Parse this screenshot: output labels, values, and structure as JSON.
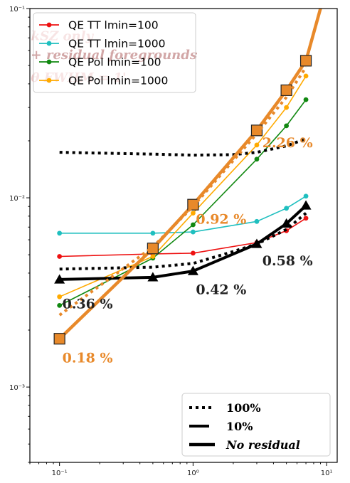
{
  "chart_data": {
    "type": "line",
    "xscale": "log",
    "yscale": "log",
    "xlim": [
      0.06,
      12
    ],
    "ylim": [
      0.0004,
      0.1
    ],
    "x_ticks": [
      {
        "value": 0.1,
        "label": "10⁻¹"
      },
      {
        "value": 1,
        "label": "10⁰"
      },
      {
        "value": 10,
        "label": "10¹"
      }
    ],
    "y_ticks": [
      {
        "value": 0.001,
        "label": "10⁻³"
      },
      {
        "value": 0.01,
        "label": "10⁻²"
      },
      {
        "value": 0.1,
        "label": "10⁻¹"
      }
    ],
    "series": [
      {
        "name": "QE TT lmin=100",
        "color": "#ee1111",
        "style": "solid",
        "marker": "dot",
        "x": [
          0.1,
          0.5,
          1,
          3,
          5,
          7
        ],
        "y": [
          0.0049,
          0.00505,
          0.0051,
          0.0058,
          0.0067,
          0.0078
        ]
      },
      {
        "name": "QE TT lmin=1000",
        "color": "#1fbfbf",
        "style": "solid",
        "marker": "dot",
        "x": [
          0.1,
          0.5,
          1,
          3,
          5,
          7
        ],
        "y": [
          0.0065,
          0.0065,
          0.0066,
          0.0075,
          0.0088,
          0.0102
        ]
      },
      {
        "name": "QE Pol lmin=100",
        "color": "#118811",
        "style": "solid",
        "marker": "dot",
        "x": [
          0.1,
          0.5,
          1,
          3,
          5,
          7
        ],
        "y": [
          0.0027,
          0.0048,
          0.0072,
          0.016,
          0.024,
          0.033
        ]
      },
      {
        "name": "QE Pol lmin=1000",
        "color": "#ffaa00",
        "style": "solid",
        "marker": "dot",
        "x": [
          0.1,
          0.5,
          1,
          3,
          5,
          7
        ],
        "y": [
          0.003,
          0.0049,
          0.0083,
          0.019,
          0.03,
          0.044
        ]
      },
      {
        "name": "",
        "color": "#000000",
        "style": "dotted",
        "marker": "none",
        "x": [
          0.1,
          0.5,
          1,
          2,
          3,
          5,
          7
        ],
        "y": [
          0.0042,
          0.0043,
          0.0045,
          0.0052,
          0.0057,
          0.0068,
          0.0083
        ]
      },
      {
        "name": "",
        "color": "#000000",
        "style": "dotted",
        "marker": "none",
        "x": [
          0.1,
          0.5,
          1,
          2,
          3,
          5,
          7
        ],
        "y": [
          0.0174,
          0.017,
          0.0168,
          0.0169,
          0.0174,
          0.0188,
          0.0205
        ]
      },
      {
        "name": "",
        "color": "#000000",
        "style": "thick",
        "marker": "triangle",
        "x": [
          0.1,
          0.5,
          1,
          3,
          5,
          7
        ],
        "y": [
          0.0037,
          0.0038,
          0.0041,
          0.0057,
          0.0073,
          0.0091
        ]
      },
      {
        "name": "",
        "color": "#e8892a",
        "style": "thick",
        "marker": "square",
        "x": [
          0.1,
          0.5,
          1,
          3,
          5,
          7,
          9
        ],
        "y": [
          0.0018,
          0.0054,
          0.0092,
          0.0227,
          0.037,
          0.053,
          0.1
        ]
      },
      {
        "name": "",
        "color": "#e8892a",
        "style": "dotted",
        "marker": "none",
        "x": [
          0.1,
          0.5,
          1,
          3,
          5,
          7
        ],
        "y": [
          0.0024,
          0.0055,
          0.009,
          0.0218,
          0.034,
          0.049
        ]
      }
    ],
    "annotations": [
      {
        "text": "0.18 %",
        "color": "#e8892a",
        "x": 0.105,
        "y": 0.00135
      },
      {
        "text": "0.36 %",
        "color": "#222222",
        "x": 0.105,
        "y": 0.0026
      },
      {
        "text": "0.42 %",
        "color": "#222222",
        "x": 1.05,
        "y": 0.0031
      },
      {
        "text": "0.58 %",
        "color": "#222222",
        "x": 3.3,
        "y": 0.0044
      },
      {
        "text": "0.92 %",
        "color": "#e8892a",
        "x": 1.05,
        "y": 0.0073
      },
      {
        "text": "2.26 %",
        "color": "#e8892a",
        "x": 3.3,
        "y": 0.0185
      }
    ],
    "legend_series": {
      "position": "upper-left",
      "entries": [
        {
          "label": "QE TT lmin=100",
          "color": "#ee1111"
        },
        {
          "label": "QE TT lmin=1000",
          "color": "#1fbfbf"
        },
        {
          "label": "QE Pol lmin=100",
          "color": "#118811"
        },
        {
          "label": "QE Pol lmin=1000",
          "color": "#ffaa00"
        }
      ]
    },
    "legend_style": {
      "position": "lower-right",
      "entries": [
        {
          "label": "100%",
          "style": "dotted",
          "italic": false
        },
        {
          "label": "10%",
          "style": "dashed",
          "italic": false
        },
        {
          "label": "No residual",
          "style": "thick",
          "italic": true
        }
      ]
    },
    "background_text": [
      {
        "text": "kSZ only",
        "x": 0.1,
        "y": 0.068
      },
      {
        "text": "+ residual foregrounds",
        "x": 0.1,
        "y": 0.054
      },
      {
        "text": "θ FWHM = 1'",
        "x": 0.1,
        "y": 0.041
      }
    ]
  }
}
